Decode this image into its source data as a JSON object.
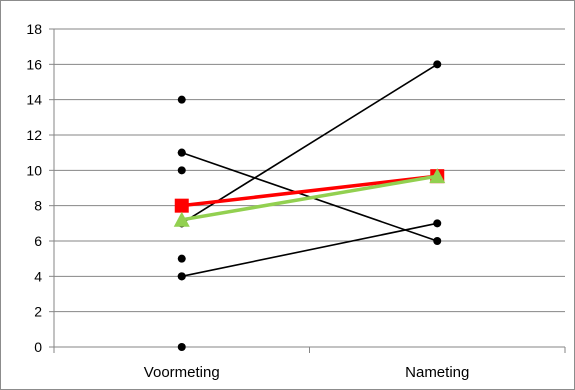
{
  "chart_data": {
    "type": "line",
    "title": "",
    "xlabel": "",
    "ylabel": "",
    "categories": [
      "Voormeting",
      "Nameting"
    ],
    "ylim": [
      0,
      18
    ],
    "yticks": [
      0,
      2,
      4,
      6,
      8,
      10,
      12,
      14,
      16,
      18
    ],
    "grid": "horizontal",
    "legend": "none",
    "individual_points": [
      {
        "category": "Voormeting",
        "values": [
          0,
          4,
          5,
          7,
          10,
          11,
          14
        ]
      }
    ],
    "series": [
      {
        "values": [
          4,
          7
        ],
        "color": "#000000",
        "marker": "circle"
      },
      {
        "values": [
          7,
          16
        ],
        "color": "#000000",
        "marker": "circle"
      },
      {
        "values": [
          11,
          6
        ],
        "color": "#000000",
        "marker": "circle"
      },
      {
        "values": [
          8,
          9.67
        ],
        "color": "#ff0000",
        "marker": "square"
      },
      {
        "values": [
          7.2,
          9.67
        ],
        "color": "#92d050",
        "marker": "triangle"
      }
    ]
  }
}
